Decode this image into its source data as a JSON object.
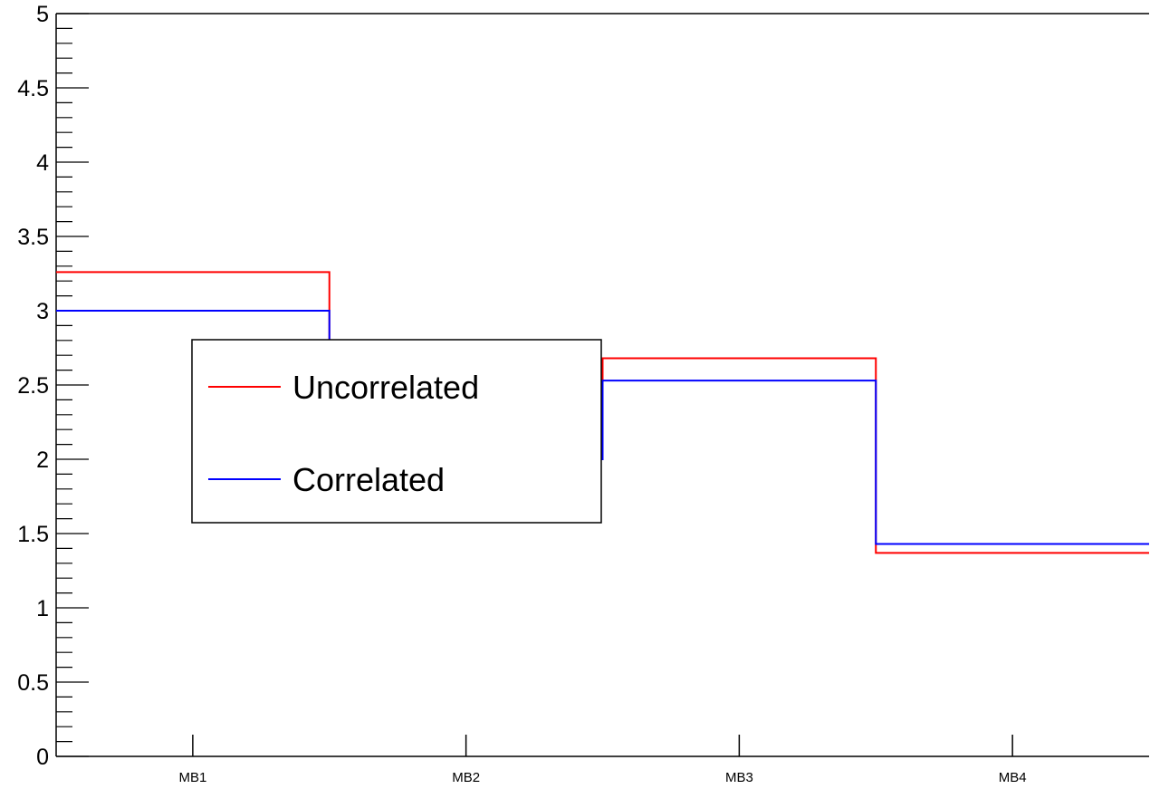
{
  "chart_data": {
    "type": "line",
    "style": "step-histogram",
    "categories": [
      "MB1",
      "MB2",
      "MB3",
      "MB4"
    ],
    "bins": [
      0,
      1,
      2,
      3,
      4
    ],
    "series": [
      {
        "name": "Uncorrelated",
        "color": "#ff0000",
        "values": [
          3.26,
          2.1,
          2.68,
          1.37
        ]
      },
      {
        "name": "Correlated",
        "color": "#0000ff",
        "values": [
          3.0,
          2.0,
          2.53,
          1.43
        ]
      }
    ],
    "yticks": [
      "0",
      "0.5",
      "1",
      "1.5",
      "2",
      "2.5",
      "3",
      "3.5",
      "4",
      "4.5",
      "5"
    ],
    "ylim": [
      0,
      5
    ],
    "title": "",
    "xlabel": "",
    "ylabel": "",
    "grid": false,
    "legend_placement": "center-left"
  }
}
